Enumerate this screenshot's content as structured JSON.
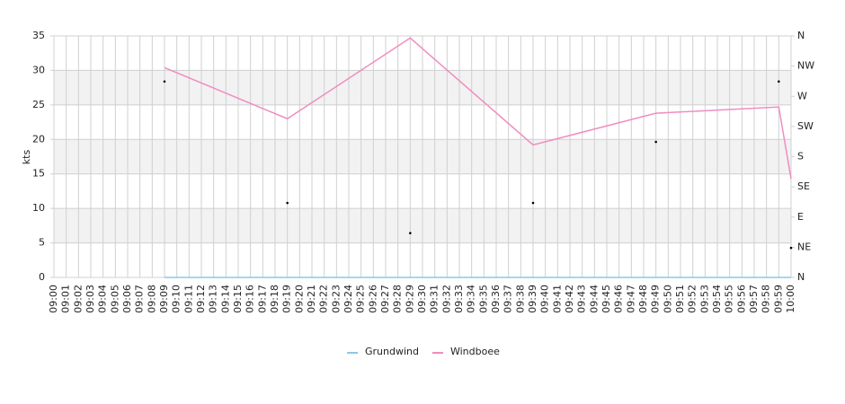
{
  "chart_data": {
    "type": "line",
    "y_label": "kts",
    "categories": [
      "09:00",
      "09:01",
      "09:02",
      "09:03",
      "09:04",
      "09:05",
      "09:06",
      "09:07",
      "09:08",
      "09:09",
      "09:10",
      "09:11",
      "09:12",
      "09:13",
      "09:14",
      "09:15",
      "09:16",
      "09:17",
      "09:18",
      "09:19",
      "09:20",
      "09:21",
      "09:22",
      "09:23",
      "09:24",
      "09:25",
      "09:26",
      "09:27",
      "09:28",
      "09:29",
      "09:30",
      "09:31",
      "09:32",
      "09:33",
      "09:34",
      "09:35",
      "09:36",
      "09:37",
      "09:38",
      "09:39",
      "09:40",
      "09:41",
      "09:42",
      "09:43",
      "09:44",
      "09:45",
      "09:46",
      "09:47",
      "09:48",
      "09:49",
      "09:50",
      "09:51",
      "09:52",
      "09:53",
      "09:54",
      "09:55",
      "09:56",
      "09:57",
      "09:58",
      "09:59",
      "10:00"
    ],
    "series": [
      {
        "name": "Grundwind",
        "color": "#8ec6e8",
        "x": [
          "09:09",
          "09:19",
          "09:29",
          "09:39",
          "09:49",
          "09:59",
          "10:00"
        ],
        "values": [
          0,
          0,
          0,
          0,
          0,
          0,
          0
        ]
      },
      {
        "name": "Windboee",
        "color": "#f08cc0",
        "x": [
          "09:09",
          "09:19",
          "09:29",
          "09:39",
          "09:49",
          "09:59",
          "10:00"
        ],
        "values": [
          30.4,
          23,
          34.7,
          19.2,
          23.8,
          24.7,
          14.3
        ]
      },
      {
        "axis": "y2",
        "marker": "dot",
        "color": "#000000",
        "x": [
          "09:09",
          "09:19",
          "09:29",
          "09:39",
          "09:49",
          "09:59",
          "10:00"
        ],
        "values": [
          292,
          111,
          66,
          111,
          202,
          292,
          44
        ]
      }
    ],
    "ylim": [
      0,
      35
    ],
    "yticks": [
      0,
      5,
      10,
      15,
      20,
      25,
      30,
      35
    ],
    "y2lim": [
      0,
      360
    ],
    "y2ticks": [
      {
        "value": 0,
        "label": "N"
      },
      {
        "value": 45,
        "label": "NE"
      },
      {
        "value": 90,
        "label": "E"
      },
      {
        "value": 135,
        "label": "SE"
      },
      {
        "value": 180,
        "label": "S"
      },
      {
        "value": 225,
        "label": "SW"
      },
      {
        "value": 270,
        "label": "W"
      },
      {
        "value": 315,
        "label": "NW"
      },
      {
        "value": 360,
        "label": "N"
      }
    ],
    "grid": true,
    "bands": true,
    "legend": "bottom"
  }
}
